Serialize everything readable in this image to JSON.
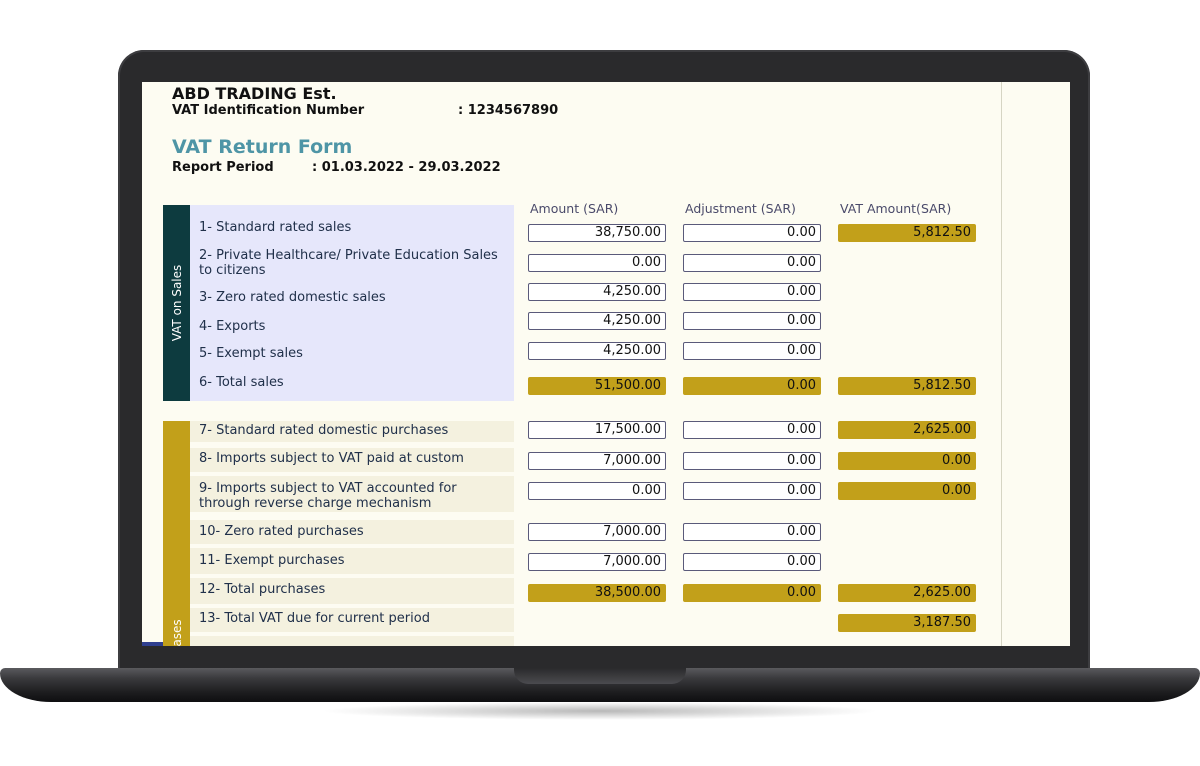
{
  "header": {
    "company": "ABD TRADING Est.",
    "vat_id_label": "VAT Identification Number",
    "vat_id_value": ": 1234567890",
    "form_title": "VAT Return Form",
    "period_label": "Report Period",
    "period_value": ": 01.03.2022 - 29.03.2022"
  },
  "columns": {
    "amount": "Amount (SAR)",
    "adjustment": "Adjustment (SAR)",
    "vat_amount": "VAT Amount(SAR)"
  },
  "sections": {
    "sales_title": "VAT on Sales",
    "purchases_title": "VAT on Purchases"
  },
  "rows": [
    {
      "label": "1- Standard rated sales",
      "amount": "38,750.00",
      "adjustment": "0.00",
      "vat": "5,812.50"
    },
    {
      "label": "2- Private Healthcare/ Private Education Sales to citizens",
      "amount": "0.00",
      "adjustment": "0.00",
      "vat": ""
    },
    {
      "label": "3- Zero rated domestic sales",
      "amount": "4,250.00",
      "adjustment": "0.00",
      "vat": ""
    },
    {
      "label": "4- Exports",
      "amount": "4,250.00",
      "adjustment": "0.00",
      "vat": ""
    },
    {
      "label": "5- Exempt sales",
      "amount": "4,250.00",
      "adjustment": "0.00",
      "vat": ""
    },
    {
      "label": "6- Total sales",
      "amount": "51,500.00",
      "adjustment": "0.00",
      "vat": "5,812.50"
    },
    {
      "label": "7- Standard rated domestic purchases",
      "amount": "17,500.00",
      "adjustment": "0.00",
      "vat": "2,625.00"
    },
    {
      "label": "8- Imports subject to VAT paid at custom",
      "amount": "7,000.00",
      "adjustment": "0.00",
      "vat": "0.00"
    },
    {
      "label": "9- Imports subject to VAT accounted for through reverse charge mechanism",
      "amount": "0.00",
      "adjustment": "0.00",
      "vat": "0.00"
    },
    {
      "label": "10- Zero rated purchases",
      "amount": "7,000.00",
      "adjustment": "0.00",
      "vat": ""
    },
    {
      "label": "11- Exempt purchases",
      "amount": "7,000.00",
      "adjustment": "0.00",
      "vat": ""
    },
    {
      "label": "12- Total purchases",
      "amount": "38,500.00",
      "adjustment": "0.00",
      "vat": "2,625.00"
    },
    {
      "label": "13- Total VAT due for current period",
      "amount": "",
      "adjustment": "",
      "vat": "3,187.50"
    }
  ],
  "colors": {
    "sales_band": "#0d3b3f",
    "purchases_band": "#c2a01a",
    "total_fill": "#c2a01a",
    "title": "#4e95a6"
  }
}
